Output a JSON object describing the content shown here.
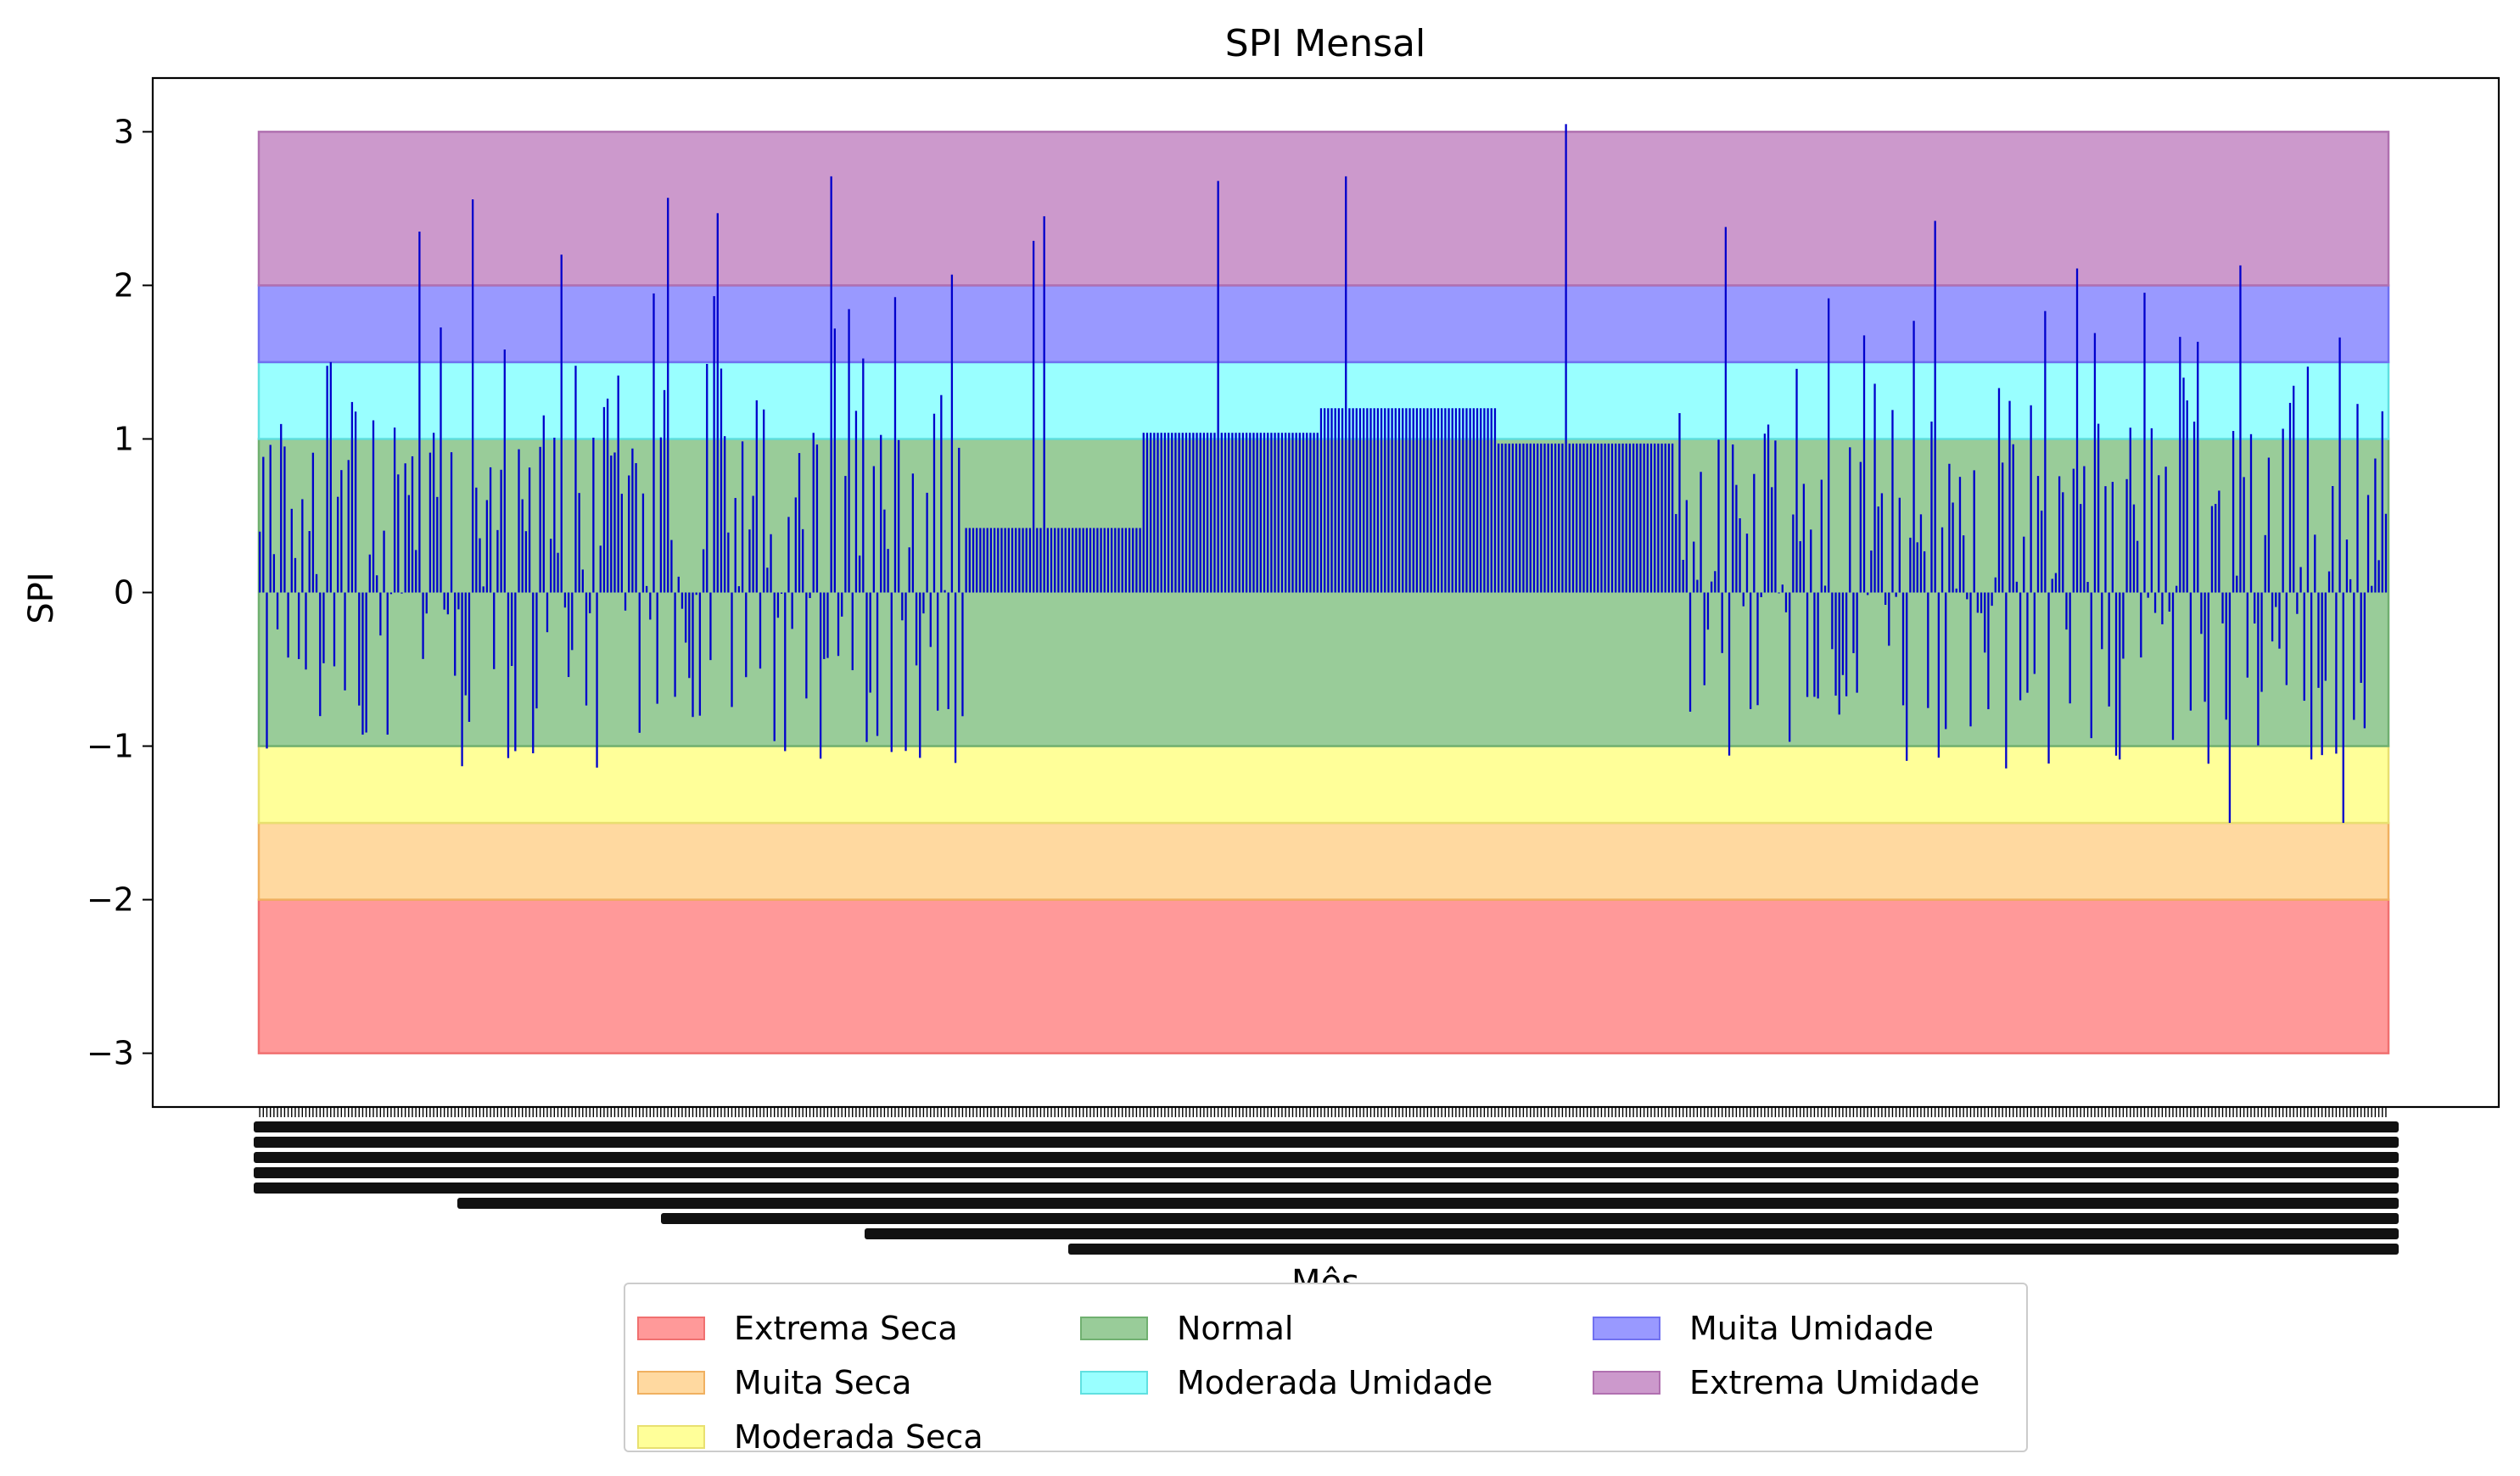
{
  "chart_data": {
    "type": "bar",
    "title": "SPI Mensal",
    "xlabel": "Mês",
    "ylabel": "SPI",
    "ylim": [
      -3.35,
      3.35
    ],
    "yticks": [
      3,
      2,
      1,
      0,
      -1,
      -2,
      -3
    ],
    "ytick_labels": [
      "3",
      "2",
      "1",
      "0",
      "−1",
      "−2",
      "−3"
    ],
    "n_months": 600,
    "bar_color": "#0000cc",
    "x_tick_labels_note": "",
    "bands": [
      {
        "name": "Extrema Seca",
        "range": [
          -3,
          -2
        ],
        "color": "#ff9999",
        "edge": "#f07070"
      },
      {
        "name": "Muita Seca",
        "range": [
          -2,
          -1.5
        ],
        "color": "#ffd9a0",
        "edge": "#f0b060"
      },
      {
        "name": "Moderada Seca",
        "range": [
          -1.5,
          -1
        ],
        "color": "#ffff99",
        "edge": "#e8e070"
      },
      {
        "name": "Normal",
        "range": [
          -1,
          1
        ],
        "color": "#99cc99",
        "edge": "#70b070"
      },
      {
        "name": "Moderada Umidade",
        "range": [
          1,
          1.5
        ],
        "color": "#99ffff",
        "edge": "#60e0e0"
      },
      {
        "name": "Muita Umidade",
        "range": [
          1.5,
          2
        ],
        "color": "#9999ff",
        "edge": "#7070f0"
      },
      {
        "name": "Extrema Umidade",
        "range": [
          2,
          3
        ],
        "color": "#cc99cc",
        "edge": "#b070b0"
      }
    ],
    "segments": [
      {
        "from": 0,
        "to": 199,
        "kind": "variable",
        "range": [
          -1.2,
          2.7
        ]
      },
      {
        "from": 199,
        "to": 249,
        "kind": "constant",
        "value": 0.42
      },
      {
        "from": 249,
        "to": 299,
        "kind": "constant",
        "value": 1.04
      },
      {
        "from": 299,
        "to": 349,
        "kind": "constant",
        "value": 1.2
      },
      {
        "from": 349,
        "to": 399,
        "kind": "constant",
        "value": 0.97
      },
      {
        "from": 399,
        "to": 600,
        "kind": "variable",
        "range": [
          -1.5,
          2.4
        ]
      }
    ],
    "spikes": [
      {
        "i": 45,
        "value": 2.35
      },
      {
        "i": 60,
        "value": 2.56
      },
      {
        "i": 85,
        "value": 2.2
      },
      {
        "i": 115,
        "value": 2.57
      },
      {
        "i": 129,
        "value": 2.47
      },
      {
        "i": 161,
        "value": 2.71
      },
      {
        "i": 195,
        "value": 2.07
      },
      {
        "i": 218,
        "value": 2.29
      },
      {
        "i": 221,
        "value": 2.45
      },
      {
        "i": 270,
        "value": 2.68
      },
      {
        "i": 306,
        "value": 2.71
      },
      {
        "i": 368,
        "value": 3.05
      },
      {
        "i": 413,
        "value": 2.38
      },
      {
        "i": 472,
        "value": 2.42
      },
      {
        "i": 512,
        "value": 2.11
      },
      {
        "i": 558,
        "value": 2.13
      },
      {
        "i": 587,
        "value": -1.5
      },
      {
        "i": 555,
        "value": -1.5
      }
    ]
  },
  "legend": {
    "items": [
      {
        "label": "Extrema Seca",
        "color": "#ff9999",
        "edge": "#f07070"
      },
      {
        "label": "Muita Seca",
        "color": "#ffd9a0",
        "edge": "#f0b060"
      },
      {
        "label": "Moderada Seca",
        "color": "#ffff99",
        "edge": "#e8e070"
      },
      {
        "label": "Normal",
        "color": "#99cc99",
        "edge": "#70b070"
      },
      {
        "label": "Moderada Umidade",
        "color": "#99ffff",
        "edge": "#60e0e0"
      },
      {
        "label": "Muita Umidade",
        "color": "#9999ff",
        "edge": "#7070f0"
      },
      {
        "label": "Extrema Umidade",
        "color": "#cc99cc",
        "edge": "#b070b0"
      }
    ]
  }
}
